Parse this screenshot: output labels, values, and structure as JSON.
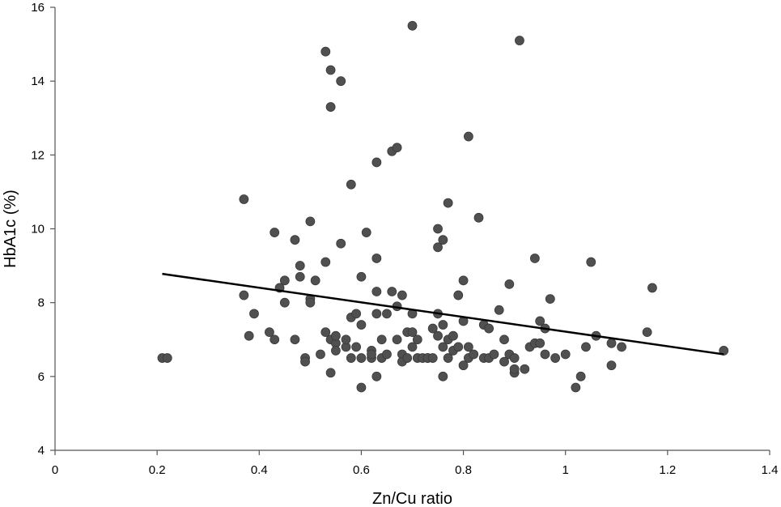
{
  "chart_data": {
    "type": "scatter",
    "xlabel": "Zn/Cu ratio",
    "ylabel": "HbA1c (%)",
    "xlim": [
      0,
      1.4
    ],
    "ylim": [
      4,
      16
    ],
    "x_ticks": [
      "0",
      "0.2",
      "0.4",
      "0.6",
      "0.8",
      "1",
      "1.2",
      "1.4"
    ],
    "y_ticks": [
      "4",
      "6",
      "8",
      "10",
      "12",
      "14",
      "16"
    ],
    "grid": false,
    "legend": "none",
    "point_color": "#505050",
    "trendline": {
      "x": [
        0.21,
        1.31
      ],
      "y": [
        8.78,
        6.6
      ]
    },
    "series": [
      {
        "points": [
          [
            0.21,
            6.5
          ],
          [
            0.22,
            6.5
          ],
          [
            0.37,
            10.8
          ],
          [
            0.37,
            8.2
          ],
          [
            0.38,
            7.1
          ],
          [
            0.39,
            7.7
          ],
          [
            0.42,
            7.2
          ],
          [
            0.43,
            9.9
          ],
          [
            0.43,
            7.0
          ],
          [
            0.44,
            8.4
          ],
          [
            0.45,
            8.6
          ],
          [
            0.45,
            8.0
          ],
          [
            0.47,
            9.7
          ],
          [
            0.47,
            7.0
          ],
          [
            0.48,
            8.7
          ],
          [
            0.48,
            9.0
          ],
          [
            0.49,
            6.5
          ],
          [
            0.49,
            6.4
          ],
          [
            0.5,
            10.2
          ],
          [
            0.5,
            8.1
          ],
          [
            0.5,
            8.0
          ],
          [
            0.51,
            8.6
          ],
          [
            0.52,
            6.6
          ],
          [
            0.53,
            9.1
          ],
          [
            0.53,
            7.2
          ],
          [
            0.53,
            14.8
          ],
          [
            0.54,
            14.3
          ],
          [
            0.54,
            7.0
          ],
          [
            0.54,
            6.1
          ],
          [
            0.54,
            13.3
          ],
          [
            0.55,
            6.9
          ],
          [
            0.55,
            6.7
          ],
          [
            0.55,
            7.1
          ],
          [
            0.56,
            14.0
          ],
          [
            0.56,
            9.6
          ],
          [
            0.57,
            6.8
          ],
          [
            0.57,
            7.0
          ],
          [
            0.58,
            11.2
          ],
          [
            0.58,
            7.6
          ],
          [
            0.58,
            6.5
          ],
          [
            0.59,
            6.8
          ],
          [
            0.59,
            7.7
          ],
          [
            0.6,
            7.4
          ],
          [
            0.6,
            8.7
          ],
          [
            0.6,
            6.5
          ],
          [
            0.6,
            5.7
          ],
          [
            0.61,
            9.9
          ],
          [
            0.62,
            6.7
          ],
          [
            0.62,
            6.5
          ],
          [
            0.62,
            6.6
          ],
          [
            0.63,
            9.2
          ],
          [
            0.63,
            8.3
          ],
          [
            0.63,
            7.7
          ],
          [
            0.63,
            11.8
          ],
          [
            0.63,
            6.0
          ],
          [
            0.64,
            7.0
          ],
          [
            0.64,
            6.5
          ],
          [
            0.65,
            6.6
          ],
          [
            0.65,
            7.7
          ],
          [
            0.66,
            12.1
          ],
          [
            0.66,
            8.3
          ],
          [
            0.67,
            12.2
          ],
          [
            0.67,
            7.9
          ],
          [
            0.67,
            7.0
          ],
          [
            0.68,
            8.2
          ],
          [
            0.68,
            6.6
          ],
          [
            0.68,
            6.4
          ],
          [
            0.69,
            7.2
          ],
          [
            0.69,
            6.5
          ],
          [
            0.7,
            7.7
          ],
          [
            0.7,
            6.8
          ],
          [
            0.7,
            7.2
          ],
          [
            0.7,
            15.5
          ],
          [
            0.71,
            6.5
          ],
          [
            0.71,
            7.0
          ],
          [
            0.72,
            6.5
          ],
          [
            0.73,
            6.5
          ],
          [
            0.73,
            6.5
          ],
          [
            0.74,
            6.5
          ],
          [
            0.74,
            7.3
          ],
          [
            0.75,
            9.5
          ],
          [
            0.75,
            10.0
          ],
          [
            0.75,
            7.7
          ],
          [
            0.75,
            7.1
          ],
          [
            0.76,
            6.0
          ],
          [
            0.76,
            9.7
          ],
          [
            0.76,
            7.4
          ],
          [
            0.76,
            6.8
          ],
          [
            0.77,
            6.5
          ],
          [
            0.77,
            7.0
          ],
          [
            0.77,
            10.7
          ],
          [
            0.78,
            6.7
          ],
          [
            0.78,
            7.1
          ],
          [
            0.79,
            6.8
          ],
          [
            0.79,
            8.2
          ],
          [
            0.8,
            6.3
          ],
          [
            0.8,
            7.5
          ],
          [
            0.8,
            8.6
          ],
          [
            0.81,
            6.8
          ],
          [
            0.81,
            12.5
          ],
          [
            0.81,
            6.5
          ],
          [
            0.82,
            6.6
          ],
          [
            0.83,
            10.3
          ],
          [
            0.84,
            6.5
          ],
          [
            0.84,
            7.4
          ],
          [
            0.85,
            7.3
          ],
          [
            0.85,
            6.5
          ],
          [
            0.86,
            6.6
          ],
          [
            0.87,
            7.8
          ],
          [
            0.88,
            7.0
          ],
          [
            0.88,
            6.4
          ],
          [
            0.89,
            8.5
          ],
          [
            0.89,
            6.6
          ],
          [
            0.9,
            6.5
          ],
          [
            0.9,
            6.1
          ],
          [
            0.9,
            6.2
          ],
          [
            0.91,
            15.1
          ],
          [
            0.92,
            6.2
          ],
          [
            0.93,
            6.8
          ],
          [
            0.94,
            6.9
          ],
          [
            0.94,
            9.2
          ],
          [
            0.95,
            6.9
          ],
          [
            0.95,
            7.5
          ],
          [
            0.96,
            6.6
          ],
          [
            0.96,
            7.3
          ],
          [
            0.97,
            8.1
          ],
          [
            0.98,
            6.5
          ],
          [
            1.0,
            6.6
          ],
          [
            1.02,
            5.7
          ],
          [
            1.03,
            6.0
          ],
          [
            1.04,
            6.8
          ],
          [
            1.05,
            9.1
          ],
          [
            1.06,
            7.1
          ],
          [
            1.09,
            6.9
          ],
          [
            1.09,
            6.3
          ],
          [
            1.11,
            6.8
          ],
          [
            1.16,
            7.2
          ],
          [
            1.17,
            8.4
          ],
          [
            1.31,
            6.7
          ]
        ]
      }
    ]
  }
}
